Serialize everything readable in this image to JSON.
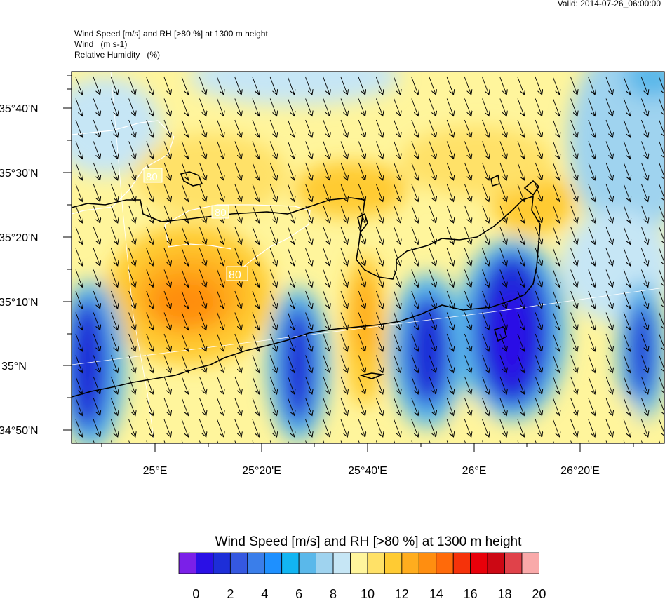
{
  "valid_label": "Valid: 2014-07-26_06:00:00",
  "titles": {
    "line1": "Wind Speed [m/s] and RH [>80 %] at 1300 m height",
    "line2": "Wind   (m s-1)",
    "line3": "Relative Humidity   (%)"
  },
  "map": {
    "lat_labels": [
      "35°40'N",
      "35°30'N",
      "35°20'N",
      "35°10'N",
      "35°N",
      "34°50'N"
    ],
    "lon_labels": [
      "25°E",
      "25°20'E",
      "25°40'E",
      "26°E",
      "26°20'E"
    ],
    "rh_contour_labels": [
      "80",
      "80",
      "80"
    ],
    "wind_direction": "from north-northwest (arrows pointing south-southeast)"
  },
  "colorbar": {
    "title": "Wind Speed [m/s] and RH [>80 %] at 1300 m height",
    "tick_labels": [
      "0",
      "2",
      "4",
      "6",
      "8",
      "10",
      "12",
      "14",
      "16",
      "18",
      "20"
    ],
    "colors": [
      "#7b20e8",
      "#2a10e6",
      "#1d2ed8",
      "#3558e0",
      "#3a7eea",
      "#1e90ff",
      "#12b5f2",
      "#5ab8ea",
      "#9fd3ef",
      "#c6e6f5",
      "#fff59c",
      "#ffe167",
      "#ffcb33",
      "#ffad1e",
      "#ff8e10",
      "#ff6a0a",
      "#f5320a",
      "#e8000a",
      "#cc0814",
      "#e0424a",
      "#f9a9a9"
    ]
  }
}
